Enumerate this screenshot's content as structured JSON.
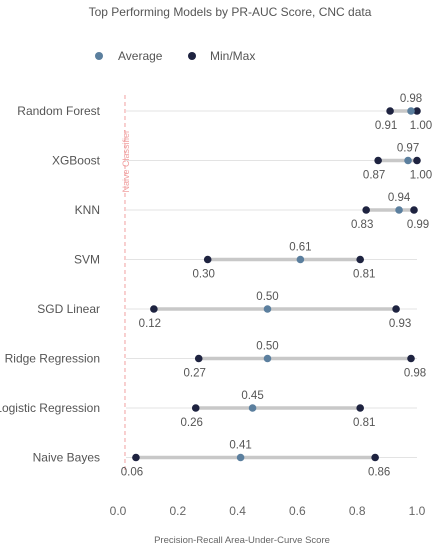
{
  "chart_data": {
    "type": "dumbbell",
    "title": "Top Performing Models by PR-AUC Score, CNC data",
    "xlabel": "Precision-Recall Area-Under-Curve Score",
    "xlim": [
      0.0,
      1.0
    ],
    "xticks": [
      "0.0",
      "0.2",
      "0.4",
      "0.6",
      "0.8",
      "1.0"
    ],
    "legend": {
      "placement": "top-left",
      "items": [
        {
          "label": "Average",
          "color": "#5b7f9e"
        },
        {
          "label": "Min/Max",
          "color": "#1e2340"
        }
      ]
    },
    "reference_line": {
      "label": "Naive Classifier",
      "x": 0.02,
      "color": "#f0a0a0"
    },
    "colors": {
      "line": "#c8c8c8",
      "grid": "#e3e3e3",
      "avg": "#5b7f9e",
      "minmax": "#1e2340"
    },
    "categories": [
      "Random Forest",
      "XGBoost",
      "KNN",
      "SVM",
      "SGD Linear",
      "Ridge Regression",
      "Logistic Regression",
      "Naive Bayes"
    ],
    "series": [
      {
        "category": "Random Forest",
        "min": 0.91,
        "avg": 0.98,
        "max": 1.0,
        "min_label": "0.91",
        "avg_label": "0.98",
        "max_label": "1.00"
      },
      {
        "category": "XGBoost",
        "min": 0.87,
        "avg": 0.97,
        "max": 1.0,
        "min_label": "0.87",
        "avg_label": "0.97",
        "max_label": "1.00"
      },
      {
        "category": "KNN",
        "min": 0.83,
        "avg": 0.94,
        "max": 0.99,
        "min_label": "0.83",
        "avg_label": "0.94",
        "max_label": "0.99"
      },
      {
        "category": "SVM",
        "min": 0.3,
        "avg": 0.61,
        "max": 0.81,
        "min_label": "0.30",
        "avg_label": "0.61",
        "max_label": "0.81"
      },
      {
        "category": "SGD Linear",
        "min": 0.12,
        "avg": 0.5,
        "max": 0.93,
        "min_label": "0.12",
        "avg_label": "0.50",
        "max_label": "0.93"
      },
      {
        "category": "Ridge Regression",
        "min": 0.27,
        "avg": 0.5,
        "max": 0.98,
        "min_label": "0.27",
        "avg_label": "0.50",
        "max_label": "0.98"
      },
      {
        "category": "Logistic Regression",
        "min": 0.26,
        "avg": 0.45,
        "max": 0.81,
        "min_label": "0.26",
        "avg_label": "0.45",
        "max_label": "0.81"
      },
      {
        "category": "Naive Bayes",
        "min": 0.06,
        "avg": 0.41,
        "max": 0.86,
        "min_label": "0.06",
        "avg_label": "0.41",
        "max_label": "0.86"
      }
    ]
  }
}
